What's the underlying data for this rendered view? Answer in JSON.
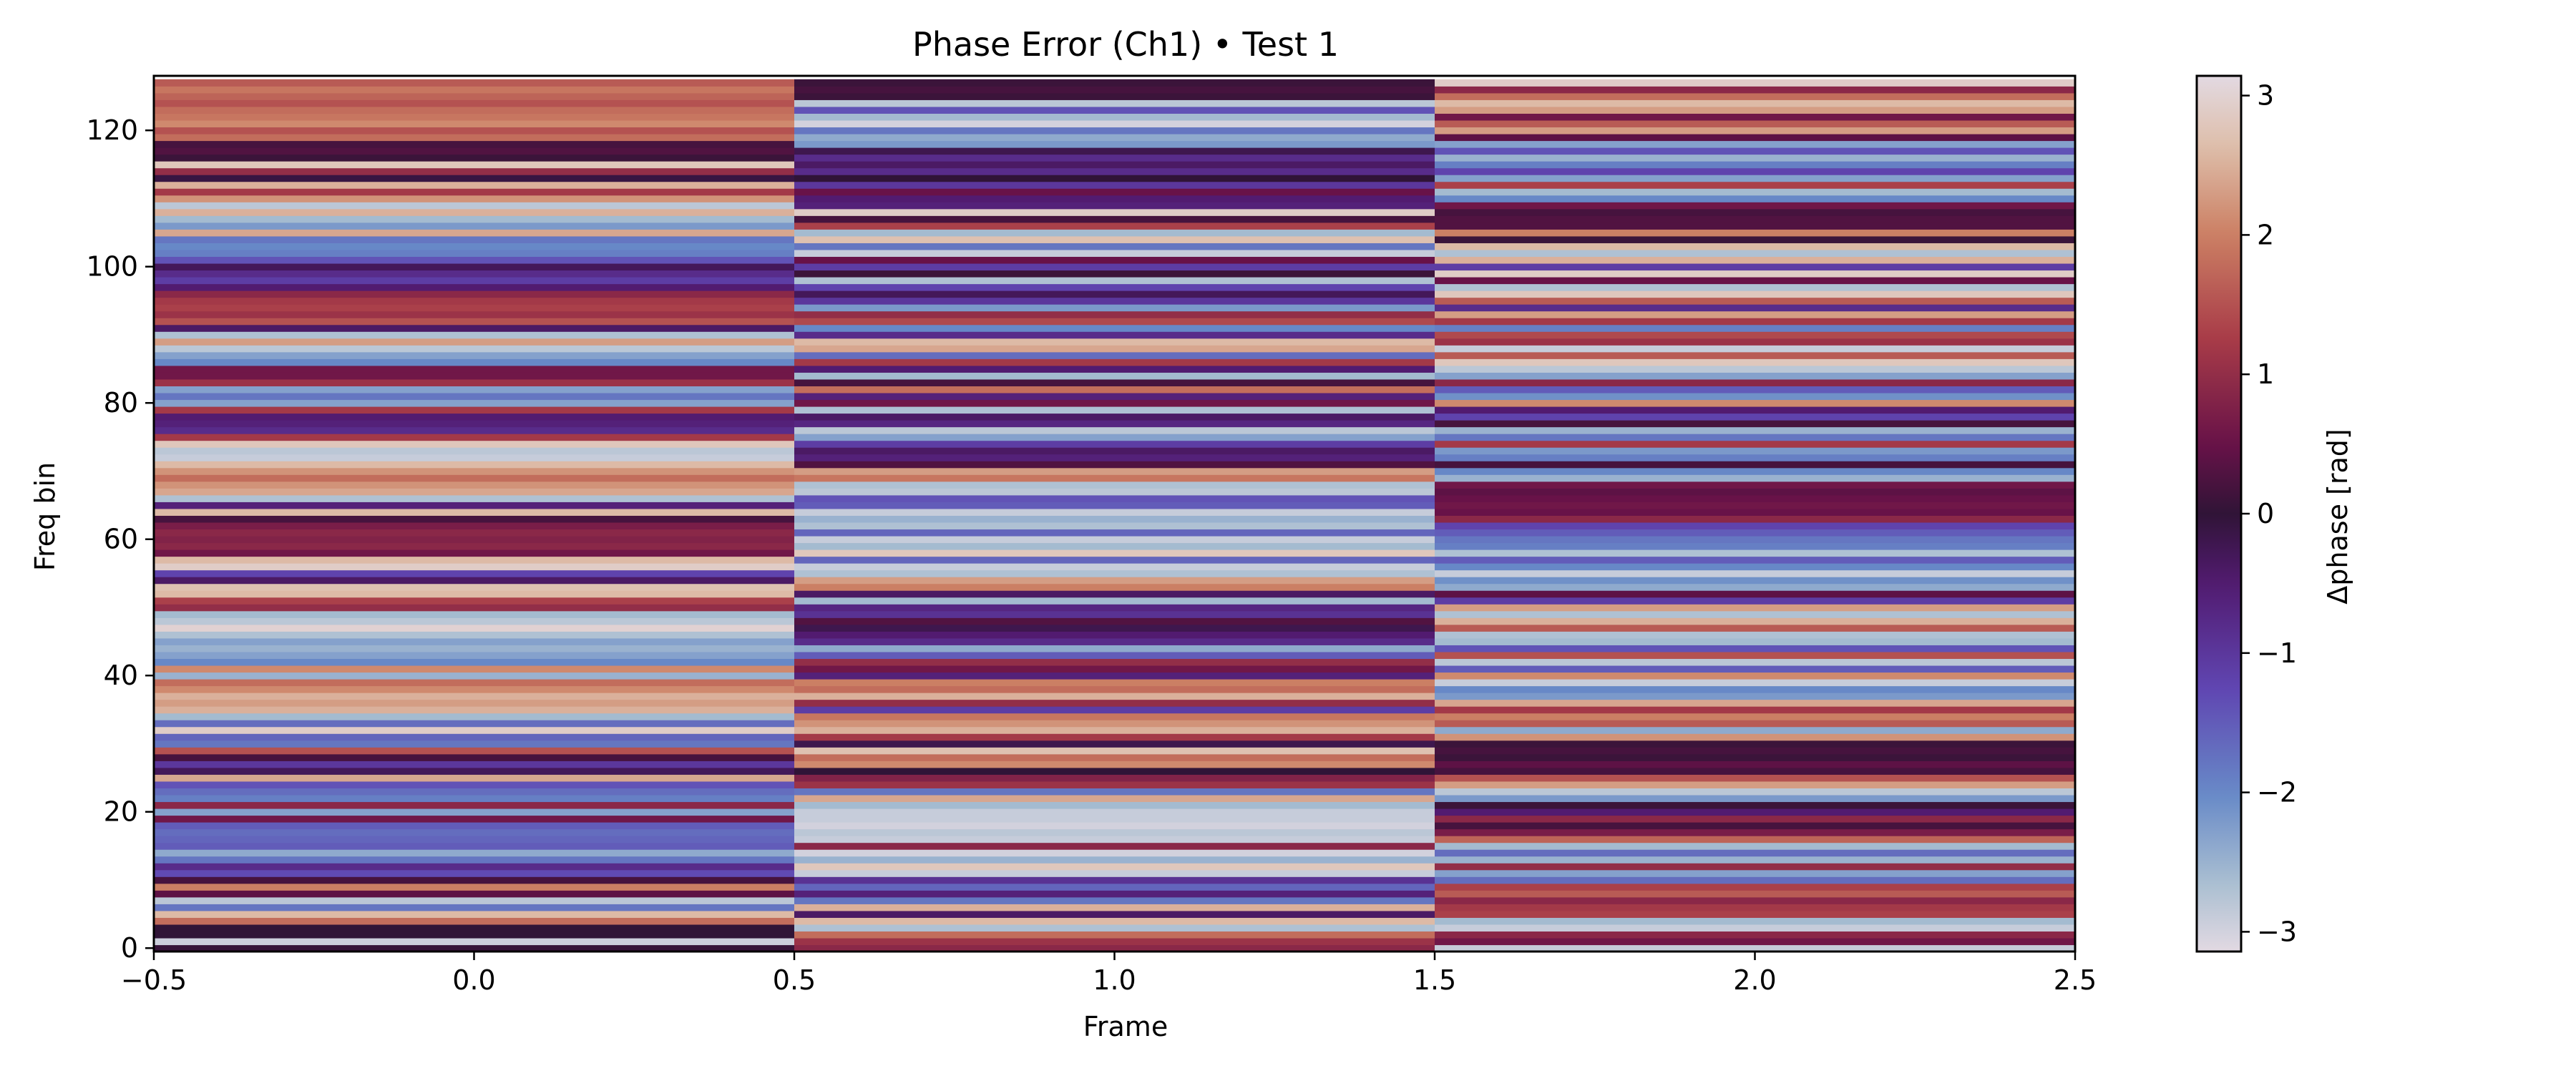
{
  "chart_data": {
    "type": "heatmap",
    "title": "Phase Error (Ch1) • Test 1",
    "xlabel": "Frame",
    "ylabel": "Freq bin",
    "colorbar_label": "Δphase [rad]",
    "colormap": "twilight_shifted",
    "xlim": [
      -0.5,
      2.5
    ],
    "ylim": [
      -0.5,
      128
    ],
    "clim": [
      -3.14159,
      3.14159
    ],
    "x": [
      0,
      1,
      2
    ],
    "n_bins": 128,
    "x_ticks": [
      -0.5,
      0.0,
      0.5,
      1.0,
      1.5,
      2.0,
      2.5
    ],
    "x_tick_labels": [
      "−0.5",
      "0.0",
      "0.5",
      "1.0",
      "1.5",
      "2.0",
      "2.5"
    ],
    "y_ticks": [
      0,
      20,
      40,
      60,
      80,
      100,
      120
    ],
    "y_tick_labels": [
      "0",
      "20",
      "40",
      "60",
      "80",
      "100",
      "120"
    ],
    "colorbar_ticks": [
      -3,
      -2,
      -1,
      0,
      1,
      2,
      3
    ],
    "colorbar_tick_labels": [
      "−3",
      "−2",
      "−1",
      "0",
      "1",
      "2",
      "3"
    ],
    "values": [
      [
        0.05,
        -2.95,
        0.0,
        0.0,
        1.8,
        2.6,
        -1.8,
        -2.8,
        0.4,
        2.0,
        0.2,
        -1.3,
        -0.8,
        -1.8,
        -2.4,
        -1.5,
        -1.6,
        -1.7,
        -1.5,
        0.6,
        -2.3,
        0.9,
        -1.9,
        -1.7,
        -1.4,
        2.4,
        -0.3,
        -1.0,
        0.2,
        1.5,
        -1.8,
        -1.6,
        2.9,
        -1.7,
        -2.6,
        2.5,
        2.3,
        2.5,
        2.1,
        1.8,
        -2.5,
        2.1,
        -2.0,
        -2.3,
        -2.5,
        -2.3,
        -2.7,
        3.0,
        -2.8,
        -2.6,
        1.0,
        1.3,
        2.6,
        2.7,
        -0.4,
        -1.2,
        2.9,
        2.6,
        0.6,
        0.9,
        0.8,
        0.9,
        0.7,
        0.2,
        2.6,
        -0.6,
        -2.7,
        2.4,
        2.2,
        1.8,
        2.2,
        2.6,
        -2.9,
        -2.8,
        2.8,
        1.2,
        -0.8,
        -0.6,
        -0.5,
        1.2,
        -2.3,
        -1.8,
        -2.3,
        1.1,
        0.6,
        0.6,
        -2.0,
        -2.3,
        -2.8,
        2.3,
        -2.7,
        -0.4,
        1.5,
        1.1,
        1.3,
        1.2,
        0.9,
        -0.5,
        -1.1,
        -0.8,
        -0.3,
        -1.4,
        -1.9,
        -2.0,
        -1.8,
        2.4,
        -2.2,
        -2.6,
        2.5,
        -2.8,
        2.2,
        1.2,
        2.5,
        -0.1,
        1.0,
        2.8,
        0.1,
        0.3,
        0.2,
        1.8,
        1.5,
        2.1,
        1.9,
        1.8,
        1.5,
        1.7,
        1.9,
        1.6
      ],
      [
        0.9,
        1.1,
        1.8,
        -2.7,
        2.6,
        -0.4,
        2.5,
        -1.8,
        -0.6,
        -1.6,
        -0.9,
        -2.9,
        2.8,
        -2.5,
        -3.0,
        0.9,
        -2.9,
        -2.8,
        -3.0,
        -2.9,
        -2.9,
        -2.6,
        2.4,
        -1.8,
        1.1,
        0.8,
        0.0,
        2.1,
        1.8,
        2.7,
        -0.2,
        1.2,
        2.5,
        2.2,
        1.9,
        -1.1,
        1.0,
        2.5,
        1.8,
        2.0,
        -0.6,
        0.6,
        1.0,
        -1.5,
        -2.4,
        -0.8,
        -0.5,
        -0.2,
        0.3,
        -0.9,
        -0.7,
        -2.6,
        -0.4,
        2.0,
        2.3,
        -2.7,
        -2.9,
        -1.6,
        2.8,
        -2.6,
        -2.9,
        -1.6,
        -2.7,
        -2.5,
        -2.9,
        -1.5,
        -1.4,
        -2.8,
        -2.7,
        1.9,
        2.3,
        0.3,
        -0.6,
        -0.4,
        -1.1,
        -2.3,
        -2.8,
        -0.7,
        -0.4,
        -2.7,
        0.6,
        -0.6,
        1.8,
        0.2,
        -2.6,
        -0.5,
        1.2,
        -1.7,
        2.4,
        2.6,
        -0.8,
        -2.0,
        1.4,
        1.0,
        -2.2,
        -1.0,
        -0.3,
        -1.2,
        -2.7,
        0.1,
        -1.1,
        0.5,
        -2.9,
        -1.8,
        2.7,
        -2.6,
        1.3,
        0.2,
        2.9,
        -0.6,
        -0.5,
        0.5,
        -1.0,
        0.0,
        -0.8,
        -0.4,
        -0.8,
        -0.2,
        -2.2,
        -2.4,
        -1.8,
        -3.0,
        -2.6,
        -1.4,
        -2.8,
        0.1,
        0.2,
        0.1
      ],
      [
        -2.9,
        0.6,
        0.9,
        -2.9,
        -2.6,
        1.3,
        1.2,
        0.9,
        1.6,
        1.3,
        -1.7,
        -2.3,
        1.0,
        -2.5,
        -1.7,
        -2.6,
        1.7,
        0.7,
        0.2,
        0.9,
        -0.5,
        0.1,
        -2.2,
        -2.8,
        2.3,
        1.5,
        0.2,
        0.4,
        0.1,
        0.2,
        0.1,
        2.2,
        -2.4,
        1.6,
        2.0,
        1.2,
        2.4,
        -2.2,
        -2.0,
        -2.9,
        2.1,
        -1.5,
        -2.8,
        1.5,
        -1.4,
        -2.6,
        -2.7,
        1.6,
        2.5,
        -2.7,
        2.3,
        -1.1,
        0.4,
        -2.4,
        -2.1,
        -2.9,
        -2.0,
        -1.5,
        -2.7,
        -1.9,
        -1.8,
        -1.5,
        -1.2,
        0.9,
        0.5,
        0.6,
        0.5,
        0.4,
        0.6,
        -2.5,
        -2.0,
        0.2,
        -1.9,
        -2.2,
        1.2,
        -1.8,
        -2.5,
        0.2,
        -1.2,
        -0.5,
        2.1,
        -2.1,
        -1.5,
        0.9,
        -2.3,
        -2.8,
        2.8,
        1.6,
        -2.9,
        1.1,
        1.4,
        -1.9,
        1.2,
        2.3,
        -0.8,
        1.6,
        2.8,
        -2.7,
        0.5,
        2.9,
        -1.1,
        2.5,
        -2.7,
        2.6,
        0.1,
        2.0,
        0.3,
        0.3,
        0.2,
        0.6,
        -2.0,
        -2.6,
        1.3,
        -2.3,
        -1.2,
        -1.9,
        -2.5,
        -1.4,
        -2.3,
        0.4,
        2.3,
        1.6,
        0.6,
        2.3,
        2.6,
        1.8,
        0.9,
        2.9
      ]
    ]
  }
}
